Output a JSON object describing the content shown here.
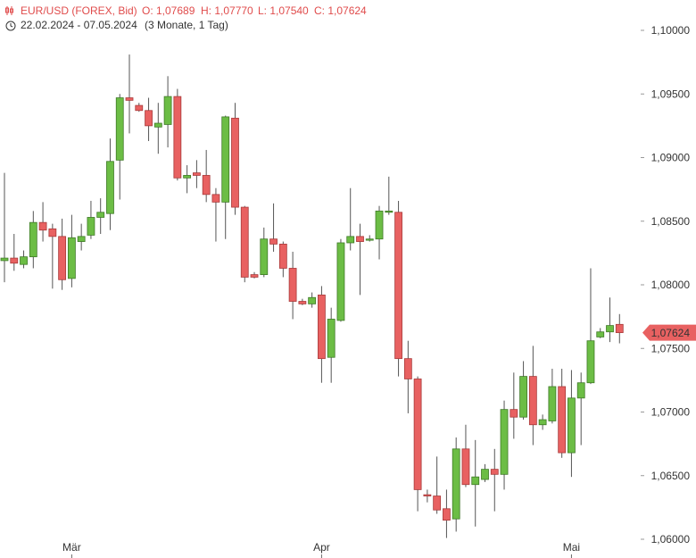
{
  "header": {
    "symbol": "EUR/USD (FOREX, Bid)",
    "ohlc": [
      "O: 1,07689",
      "H: 1,07770",
      "L: 1,07540",
      "C: 1,07624"
    ],
    "range": "22.02.2024 - 07.05.2024",
    "period": "(3 Monate, 1 Tag)"
  },
  "chart_data": {
    "type": "candlestick",
    "categories": [
      null,
      null,
      null,
      null,
      null,
      null,
      null,
      "Mär",
      null,
      null,
      null,
      null,
      null,
      null,
      null,
      null,
      null,
      null,
      null,
      null,
      null,
      null,
      null,
      null,
      null,
      null,
      null,
      null,
      null,
      null,
      null,
      null,
      null,
      "Apr",
      null,
      null,
      null,
      null,
      null,
      null,
      null,
      null,
      null,
      null,
      null,
      null,
      null,
      null,
      null,
      null,
      null,
      null,
      null,
      null,
      null,
      null,
      null,
      null,
      null,
      "Mai",
      null,
      null,
      null,
      null,
      null
    ],
    "open": [
      1.0819,
      1.0821,
      1.0816,
      1.0822,
      1.0849,
      1.0844,
      1.0838,
      1.0805,
      1.0834,
      1.0839,
      1.0853,
      1.0856,
      1.0898,
      1.0947,
      1.0941,
      1.0937,
      1.0924,
      1.0926,
      1.0948,
      1.0884,
      1.0888,
      1.0886,
      1.0871,
      1.0865,
      1.0931,
      1.0861,
      1.0808,
      1.0808,
      1.0836,
      1.0832,
      1.0813,
      1.0787,
      1.0785,
      1.0792,
      1.0743,
      1.0772,
      1.0833,
      1.0838,
      1.0835,
      1.0836,
      1.0857,
      1.0857,
      1.0742,
      1.0726,
      1.0635,
      1.0634,
      1.0624,
      1.0616,
      1.0671,
      1.0643,
      1.0647,
      1.0655,
      1.0651,
      1.0702,
      1.0696,
      1.0728,
      1.069,
      1.0693,
      1.072,
      1.0668,
      1.0711,
      1.0723,
      1.0759,
      1.0763,
      1.07689
    ],
    "high": [
      1.0888,
      1.084,
      1.0827,
      1.0858,
      1.0865,
      1.0848,
      1.0852,
      1.0855,
      1.0848,
      1.0866,
      1.0868,
      1.0915,
      1.095,
      1.0981,
      1.0943,
      1.0947,
      1.0943,
      1.0964,
      1.0954,
      1.0894,
      1.0898,
      1.0906,
      1.0876,
      1.0933,
      1.0943,
      1.0862,
      1.081,
      1.0845,
      1.0864,
      1.0834,
      1.0826,
      1.0789,
      1.0794,
      1.0799,
      1.0782,
      1.0836,
      1.0876,
      1.0848,
      1.0839,
      1.0862,
      1.0885,
      1.0866,
      1.0756,
      1.0728,
      1.0639,
      1.0665,
      1.0639,
      1.068,
      1.069,
      1.0678,
      1.0659,
      1.0671,
      1.0709,
      1.0731,
      1.074,
      1.0752,
      1.0698,
      1.0734,
      1.0734,
      1.0733,
      1.0731,
      1.0813,
      1.0766,
      1.079,
      1.0777
    ],
    "low": [
      1.0802,
      1.0811,
      1.0813,
      1.0813,
      1.0834,
      1.0797,
      1.0796,
      1.0798,
      1.0827,
      1.0836,
      1.084,
      1.0843,
      1.0867,
      1.0919,
      1.0936,
      1.0913,
      1.0903,
      1.0908,
      1.0882,
      1.0872,
      1.0876,
      1.0865,
      1.0834,
      1.0836,
      1.0855,
      1.0802,
      1.0805,
      1.0806,
      1.0826,
      1.0806,
      1.0773,
      1.0784,
      1.0782,
      1.0723,
      1.0723,
      1.0771,
      1.0827,
      1.0792,
      1.0834,
      1.082,
      1.0855,
      1.0728,
      1.0699,
      1.0622,
      1.0629,
      1.062,
      1.0601,
      1.0606,
      1.0641,
      1.061,
      1.0645,
      1.0622,
      1.0639,
      1.0679,
      1.0694,
      1.0674,
      1.0686,
      1.0691,
      1.0664,
      1.0649,
      1.0674,
      1.0722,
      1.0758,
      1.0755,
      1.0754
    ],
    "close": [
      1.0821,
      1.0817,
      1.0822,
      1.0849,
      1.0843,
      1.0838,
      1.0804,
      1.0837,
      1.0838,
      1.0853,
      1.0857,
      1.0897,
      1.0947,
      1.0945,
      1.0937,
      1.0925,
      1.0927,
      1.0948,
      1.0884,
      1.0886,
      1.0886,
      1.0871,
      1.0865,
      1.0932,
      1.0861,
      1.0806,
      1.0806,
      1.0836,
      1.0832,
      1.0813,
      1.0787,
      1.0785,
      1.079,
      1.0742,
      1.0773,
      1.0833,
      1.0838,
      1.0834,
      1.0836,
      1.0858,
      1.0858,
      1.0742,
      1.0726,
      1.0639,
      1.0634,
      1.0623,
      1.0615,
      1.0671,
      1.0643,
      1.0649,
      1.0655,
      1.0651,
      1.0702,
      1.0696,
      1.0728,
      1.069,
      1.0694,
      1.072,
      1.0668,
      1.0711,
      1.0723,
      1.0756,
      1.0763,
      1.0768,
      1.07624
    ],
    "up_color": "#6cbd45",
    "down_color": "#e86161",
    "last_price": {
      "value": 1.07624,
      "label": "1,07624"
    },
    "ylim": [
      1.06,
      1.1
    ],
    "yticks": [
      {
        "value": 1.06,
        "label": "1,06000"
      },
      {
        "value": 1.065,
        "label": "1,06500"
      },
      {
        "value": 1.07,
        "label": "1,07000"
      },
      {
        "value": 1.075,
        "label": "1,07500"
      },
      {
        "value": 1.08,
        "label": "1,08000"
      },
      {
        "value": 1.085,
        "label": "1,08500"
      },
      {
        "value": 1.09,
        "label": "1,09000"
      },
      {
        "value": 1.095,
        "label": "1,09500"
      },
      {
        "value": 1.1,
        "label": "1,10000"
      }
    ]
  }
}
